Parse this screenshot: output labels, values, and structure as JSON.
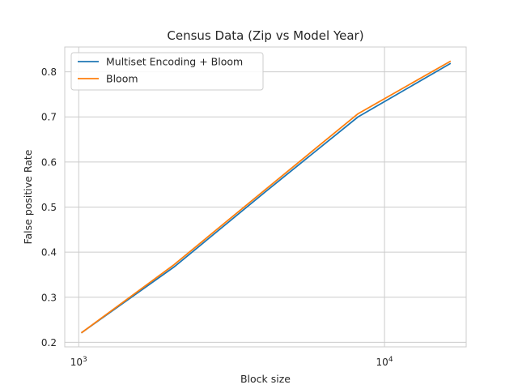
{
  "chart_data": {
    "type": "line",
    "title": "Census Data (Zip vs Model Year)",
    "xlabel": "Block size",
    "ylabel": "False positive Rate",
    "xscale": "log",
    "xlim": [
      900,
      18500
    ],
    "ylim": [
      0.19,
      0.855
    ],
    "xticks": [
      {
        "value": 1000,
        "base": "10",
        "exp": "3"
      },
      {
        "value": 10000,
        "base": "10",
        "exp": "4"
      }
    ],
    "yticks": [
      {
        "value": 0.2,
        "label": "0.2"
      },
      {
        "value": 0.3,
        "label": "0.3"
      },
      {
        "value": 0.4,
        "label": "0.4"
      },
      {
        "value": 0.5,
        "label": "0.5"
      },
      {
        "value": 0.6,
        "label": "0.6"
      },
      {
        "value": 0.7,
        "label": "0.7"
      },
      {
        "value": 0.8,
        "label": "0.8"
      }
    ],
    "grid": true,
    "legend_position": "top-left",
    "x": [
      1024,
      2048,
      4096,
      8192,
      16384
    ],
    "series": [
      {
        "name": "Multiset Encoding + Bloom",
        "color": "#1f77b4",
        "values": [
          0.222,
          0.367,
          0.535,
          0.7,
          0.818
        ]
      },
      {
        "name": "Bloom",
        "color": "#ff7f0e",
        "values": [
          0.222,
          0.372,
          0.54,
          0.707,
          0.823
        ]
      }
    ]
  }
}
